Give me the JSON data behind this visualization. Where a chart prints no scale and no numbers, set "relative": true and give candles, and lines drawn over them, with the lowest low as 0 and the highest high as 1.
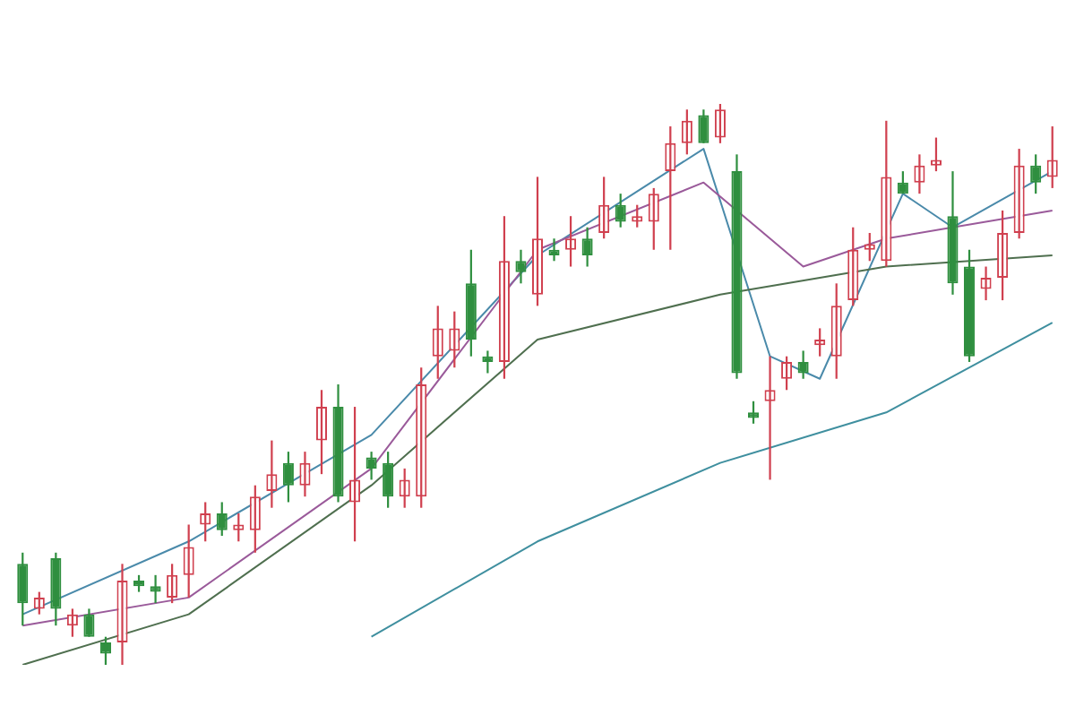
{
  "chart_data": {
    "type": "candlestick",
    "relative": true,
    "legend": false,
    "categories": [
      null,
      null,
      null,
      null,
      null,
      null,
      null,
      null,
      null,
      null,
      null,
      null,
      null,
      null,
      null,
      null,
      null,
      null,
      null,
      null,
      null,
      null,
      null,
      null,
      null,
      null,
      null,
      null,
      null,
      null,
      null,
      null,
      null,
      null,
      null,
      null,
      null,
      null,
      null,
      null,
      null,
      null,
      null,
      null,
      null,
      null,
      null,
      null,
      null,
      null,
      null,
      null,
      null,
      null,
      null,
      null,
      null,
      null,
      null,
      null,
      null,
      null,
      null
    ],
    "ohlc": [
      [
        0.18,
        0.2,
        0.07,
        0.11
      ],
      [
        0.1,
        0.13,
        0.09,
        0.12
      ],
      [
        0.19,
        0.2,
        0.07,
        0.1
      ],
      [
        0.07,
        0.1,
        0.05,
        0.09
      ],
      [
        0.09,
        0.1,
        0.05,
        0.05
      ],
      [
        0.04,
        0.05,
        0,
        0.02
      ],
      [
        0.04,
        0.18,
        0,
        0.15
      ],
      [
        0.15,
        0.16,
        0.13,
        0.14
      ],
      [
        0.14,
        0.16,
        0.11,
        0.13
      ],
      [
        0.12,
        0.18,
        0.11,
        0.16
      ],
      [
        0.16,
        0.25,
        0.12,
        0.21
      ],
      [
        0.25,
        0.29,
        0.22,
        0.27
      ],
      [
        0.27,
        0.29,
        0.23,
        0.24
      ],
      [
        0.24,
        0.27,
        0.22,
        0.25
      ],
      [
        0.24,
        0.32,
        0.2,
        0.3
      ],
      [
        0.31,
        0.4,
        0.28,
        0.34
      ],
      [
        0.36,
        0.38,
        0.29,
        0.32
      ],
      [
        0.32,
        0.38,
        0.3,
        0.36
      ],
      [
        0.4,
        0.49,
        0.34,
        0.46
      ],
      [
        0.46,
        0.5,
        0.29,
        0.3
      ],
      [
        0.29,
        0.46,
        0.22,
        0.33
      ],
      [
        0.37,
        0.38,
        0.33,
        0.35
      ],
      [
        0.36,
        0.38,
        0.28,
        0.3
      ],
      [
        0.3,
        0.35,
        0.28,
        0.33
      ],
      [
        0.3,
        0.53,
        0.28,
        0.5
      ],
      [
        0.55,
        0.64,
        0.51,
        0.6
      ],
      [
        0.56,
        0.63,
        0.53,
        0.6
      ],
      [
        0.68,
        0.74,
        0.55,
        0.58
      ],
      [
        0.55,
        0.56,
        0.52,
        0.54
      ],
      [
        0.54,
        0.8,
        0.51,
        0.72
      ],
      [
        0.72,
        0.74,
        0.68,
        0.7
      ],
      [
        0.66,
        0.87,
        0.64,
        0.76
      ],
      [
        0.74,
        0.76,
        0.72,
        0.73
      ],
      [
        0.74,
        0.8,
        0.71,
        0.76
      ],
      [
        0.76,
        0.78,
        0.71,
        0.73
      ],
      [
        0.77,
        0.87,
        0.76,
        0.82
      ],
      [
        0.82,
        0.84,
        0.78,
        0.79
      ],
      [
        0.79,
        0.82,
        0.78,
        0.8
      ],
      [
        0.79,
        0.85,
        0.74,
        0.84
      ],
      [
        0.88,
        0.96,
        0.74,
        0.93
      ],
      [
        0.93,
        0.99,
        0.91,
        0.97
      ],
      [
        0.98,
        0.99,
        0.93,
        0.93
      ],
      [
        0.94,
        1,
        0.93,
        0.99
      ],
      [
        0.88,
        0.91,
        0.51,
        0.52
      ],
      [
        0.45,
        0.47,
        0.43,
        0.44
      ],
      [
        0.47,
        0.55,
        0.33,
        0.49
      ],
      [
        0.51,
        0.55,
        0.49,
        0.54
      ],
      [
        0.54,
        0.56,
        0.51,
        0.52
      ],
      [
        0.57,
        0.6,
        0.55,
        0.58
      ],
      [
        0.55,
        0.68,
        0.51,
        0.64
      ],
      [
        0.65,
        0.78,
        0.64,
        0.74
      ],
      [
        0.74,
        0.77,
        0.72,
        0.75
      ],
      [
        0.72,
        0.97,
        0.71,
        0.87
      ],
      [
        0.86,
        0.88,
        0.84,
        0.84
      ],
      [
        0.86,
        0.91,
        0.84,
        0.89
      ],
      [
        0.89,
        0.94,
        0.88,
        0.9
      ],
      [
        0.8,
        0.88,
        0.66,
        0.68
      ],
      [
        0.71,
        0.74,
        0.54,
        0.55
      ],
      [
        0.67,
        0.71,
        0.65,
        0.69
      ],
      [
        0.69,
        0.81,
        0.65,
        0.77
      ],
      [
        0.77,
        0.92,
        0.76,
        0.89
      ],
      [
        0.89,
        0.91,
        0.84,
        0.86
      ],
      [
        0.87,
        0.96,
        0.85,
        0.9
      ]
    ],
    "series": [
      {
        "type": "line",
        "color": "#3f8f9f",
        "values": [
          null,
          null,
          null,
          null,
          null,
          null,
          null,
          null,
          null,
          null,
          null,
          null,
          null,
          null,
          null,
          null,
          null,
          null,
          null,
          null,
          null,
          0.05,
          null,
          null,
          null,
          null,
          null,
          null,
          null,
          null,
          null,
          0.22,
          null,
          null,
          null,
          null,
          null,
          null,
          null,
          null,
          null,
          null,
          0.36,
          null,
          null,
          null,
          null,
          null,
          null,
          null,
          null,
          null,
          0.45,
          null,
          null,
          null,
          null,
          null,
          null,
          null,
          null,
          null,
          0.61
        ]
      },
      {
        "type": "line",
        "color": "#4f6f4f",
        "values": [
          0,
          null,
          null,
          null,
          null,
          null,
          null,
          null,
          null,
          null,
          0.09,
          null,
          null,
          null,
          null,
          null,
          null,
          null,
          null,
          null,
          null,
          0.32,
          null,
          null,
          null,
          null,
          null,
          null,
          null,
          null,
          null,
          0.58,
          null,
          null,
          null,
          null,
          null,
          null,
          null,
          null,
          null,
          null,
          0.66,
          null,
          null,
          null,
          null,
          null,
          null,
          null,
          null,
          null,
          0.71,
          null,
          null,
          null,
          null,
          null,
          null,
          null,
          null,
          null,
          0.73
        ]
      },
      {
        "type": "line",
        "color": "#9a5a9a",
        "values": [
          0.07,
          null,
          null,
          null,
          null,
          null,
          null,
          null,
          null,
          null,
          0.12,
          null,
          null,
          null,
          null,
          null,
          null,
          null,
          null,
          null,
          null,
          0.35,
          null,
          null,
          null,
          null,
          null,
          null,
          null,
          null,
          null,
          0.74,
          null,
          null,
          null,
          null,
          null,
          null,
          null,
          null,
          null,
          0.86,
          null,
          null,
          null,
          null,
          null,
          0.71,
          null,
          null,
          null,
          null,
          0.76,
          null,
          null,
          null,
          null,
          null,
          null,
          null,
          null,
          null,
          0.81
        ]
      },
      {
        "type": "line",
        "color": "#4a8aaa",
        "values": [
          0.09,
          null,
          null,
          null,
          null,
          null,
          null,
          null,
          null,
          null,
          0.22,
          null,
          null,
          null,
          null,
          null,
          null,
          null,
          null,
          null,
          null,
          0.41,
          null,
          null,
          null,
          null,
          null,
          null,
          null,
          null,
          null,
          0.73,
          null,
          null,
          null,
          null,
          null,
          null,
          null,
          null,
          null,
          0.92,
          null,
          null,
          null,
          0.55,
          null,
          null,
          0.51,
          null,
          null,
          null,
          null,
          0.84,
          null,
          null,
          0.78,
          null,
          null,
          null,
          null,
          null,
          0.88
        ]
      }
    ]
  }
}
